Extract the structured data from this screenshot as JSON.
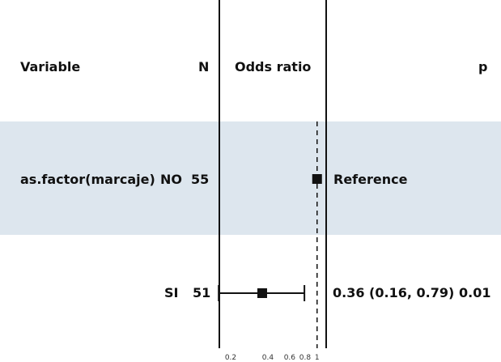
{
  "header": {
    "variable": "Variable",
    "n": "N",
    "odds_ratio": "Odds ratio",
    "p": "p"
  },
  "rows": [
    {
      "variable": "as.factor(marcaje)",
      "level": "NO",
      "n": "55",
      "estimate_text": "Reference",
      "p": ""
    },
    {
      "variable": "",
      "level": "SI",
      "n": "51",
      "estimate_text": "0.36 (0.16, 0.79)",
      "p": "0.01"
    }
  ],
  "colors": {
    "reference_band": "#dde6ee",
    "ink": "#111111"
  },
  "chart_data": {
    "type": "forest",
    "x_scale": "log",
    "reference_line": 1,
    "xlim": [
      0.18,
      1.05
    ],
    "x_ticks": [
      0.2,
      0.4,
      0.6,
      0.8,
      1
    ],
    "x_tick_labels": [
      "0.2",
      "0.4",
      "0.6",
      "0.8",
      "1"
    ],
    "points": [
      {
        "label": "NO",
        "estimate": 1,
        "reference": true
      },
      {
        "label": "SI",
        "estimate": 0.36,
        "lower": 0.16,
        "upper": 0.79
      }
    ]
  }
}
